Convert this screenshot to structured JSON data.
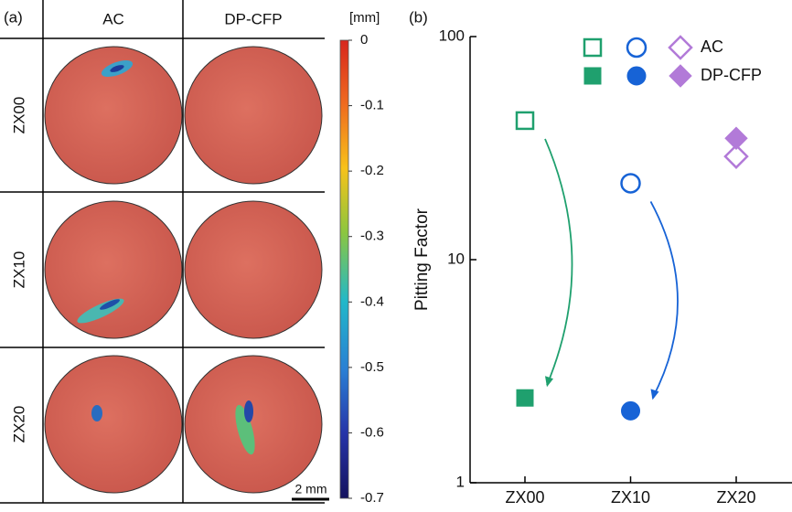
{
  "panel_a": {
    "label": "(a)",
    "columns": [
      "AC",
      "DP-CFP"
    ],
    "rows": [
      "ZX00",
      "ZX10",
      "ZX20"
    ],
    "colorbar": {
      "unit": "[mm]",
      "clim": [
        -0.7,
        0
      ],
      "ticks": [
        0,
        -0.1,
        -0.2,
        -0.3,
        -0.4,
        -0.5,
        -0.6,
        -0.7
      ]
    },
    "scale_bar": "2 mm"
  },
  "chart_data": {
    "type": "scatter",
    "panel_label": "(b)",
    "ylabel": "Pitting Factor",
    "categories": [
      "ZX00",
      "ZX10",
      "ZX20"
    ],
    "category_colors": [
      "#1fa06e",
      "#1763d6",
      "#b27ad8"
    ],
    "markers": [
      "square",
      "circle",
      "diamond"
    ],
    "series": [
      {
        "name": "AC",
        "filled": false,
        "values": [
          42,
          22,
          29
        ]
      },
      {
        "name": "DP-CFP",
        "filled": true,
        "values": [
          2.4,
          2.1,
          35
        ]
      }
    ],
    "log_scale": true,
    "ylim": [
      1,
      100
    ],
    "yticks": [
      1,
      10,
      100
    ]
  }
}
